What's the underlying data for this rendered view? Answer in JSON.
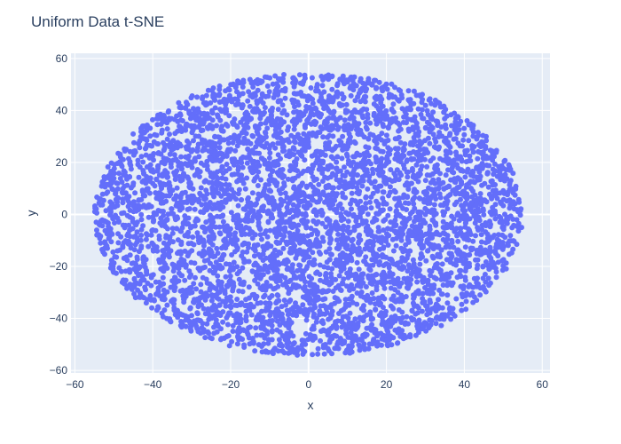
{
  "chart_data": {
    "type": "scatter",
    "title": "Uniform Data t-SNE",
    "xlabel": "x",
    "ylabel": "y",
    "xlim": [
      -61,
      62
    ],
    "ylim": [
      -61,
      62
    ],
    "xticks": [
      -60,
      -40,
      -20,
      0,
      20,
      40,
      60
    ],
    "yticks": [
      -60,
      -40,
      -20,
      0,
      20,
      40,
      60
    ],
    "grid": true,
    "legend": "none",
    "point_count": 5000,
    "distribution": {
      "shape": "filled-ellipse",
      "x_range": [
        -55,
        55
      ],
      "y_range": [
        -54,
        55
      ],
      "center": [
        0,
        0
      ]
    },
    "colors": {
      "marker": "#636efa",
      "plot_background": "#e5ecf6",
      "grid": "#ffffff",
      "text": "#2a3f5f"
    }
  }
}
